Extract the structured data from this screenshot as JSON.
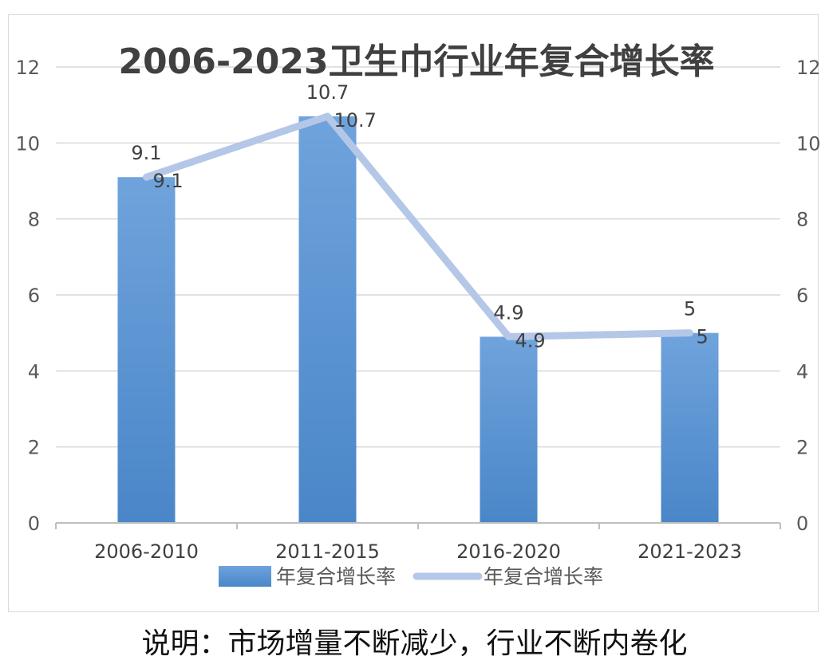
{
  "chart_data": {
    "type": "bar",
    "title": "2006-2023卫生巾行业年复合增长率",
    "categories": [
      "2006-2010",
      "2011-2015",
      "2016-2020",
      "2021-2023"
    ],
    "series": [
      {
        "name": "年复合增长率",
        "type": "bar",
        "values": [
          9.1,
          10.7,
          4.9,
          5
        ],
        "labels": [
          "9.1",
          "10.7",
          "4.9",
          "5"
        ]
      },
      {
        "name": "年复合增长率",
        "type": "line",
        "values": [
          9.1,
          10.7,
          4.9,
          5
        ],
        "labels": [
          "9.1",
          "10.7",
          "4.9",
          "5"
        ]
      }
    ],
    "ylim": [
      0,
      12
    ],
    "y_ticks": [
      "0",
      "2",
      "4",
      "6",
      "8",
      "10",
      "12"
    ],
    "y2lim": [
      0,
      12
    ],
    "y2_ticks": [
      "0",
      "2",
      "4",
      "6",
      "8",
      "10",
      "12"
    ],
    "grid": true,
    "legend_position": "bottom",
    "colors": {
      "bar": "#5b9bd5",
      "line": "#b4c7e7"
    }
  },
  "caption": "说明：市场增量不断减少，行业不断内卷化"
}
